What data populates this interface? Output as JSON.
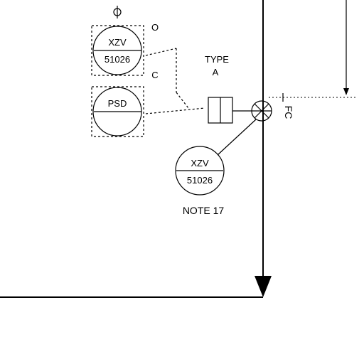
{
  "instrument_top": {
    "line1": "XZV",
    "line2": "51026"
  },
  "instrument_psd": {
    "label": "PSD"
  },
  "instrument_bottom": {
    "line1": "XZV",
    "line2": "51026"
  },
  "actuator_type": {
    "line1": "TYPE",
    "line2": "A"
  },
  "position_open_label": "O",
  "position_closed_label": "C",
  "valve_fail_label": "FC",
  "note_label": "NOTE 17"
}
